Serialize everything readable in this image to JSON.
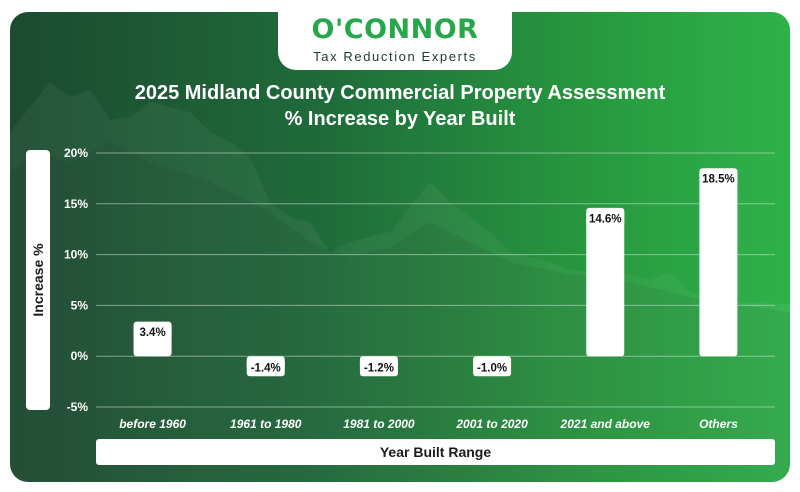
{
  "brand": {
    "name": "O'CONNOR",
    "tagline": "Tax Reduction Experts"
  },
  "colors": {
    "bar": "#ffffff",
    "grid": "#cfe8d4",
    "accent": "#26a84a"
  },
  "chart_data": {
    "type": "bar",
    "title": "2025 Midland County Commercial Property Assessment",
    "subtitle": "% Increase by Year Built",
    "xlabel": "Year Built Range",
    "ylabel": "Increase %",
    "categories": [
      "before 1960",
      "1961 to 1980",
      "1981 to 2000",
      "2001 to 2020",
      "2021 and above",
      "Others"
    ],
    "values": [
      3.4,
      -1.4,
      -1.2,
      -1.0,
      14.6,
      18.5
    ],
    "data_labels": [
      "3.4%",
      "-1.4%",
      "-1.2%",
      "-1.0%",
      "14.6%",
      "18.5%"
    ],
    "ylim": [
      -5,
      20
    ],
    "yticks": [
      20,
      15,
      10,
      5,
      0,
      -5
    ],
    "ytick_labels": [
      "20%",
      "15%",
      "10%",
      "5%",
      "0%",
      "-5%"
    ],
    "grid": true,
    "legend": "none"
  }
}
